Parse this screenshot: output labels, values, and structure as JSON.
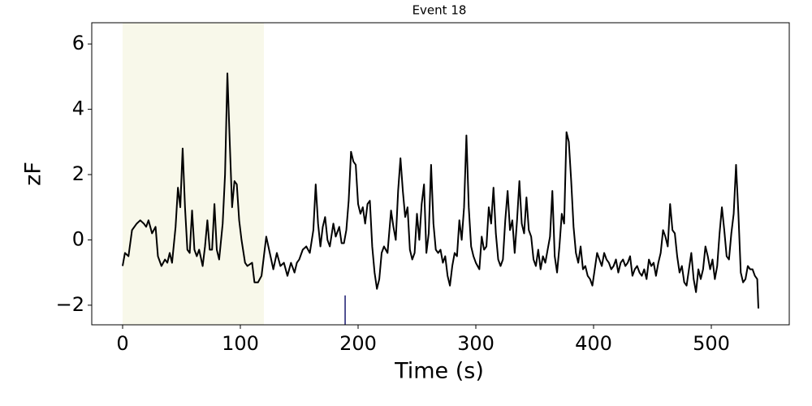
{
  "chart_data": {
    "type": "line",
    "title": "Event 18",
    "xlabel": "Time (s)",
    "ylabel": "zF",
    "xlim": [
      -26.2,
      566.2
    ],
    "ylim": [
      -2.6,
      6.65
    ],
    "xticks": [
      0,
      100,
      200,
      300,
      400,
      500
    ],
    "yticks": [
      {
        "value": -2,
        "label": "−2"
      },
      0,
      2,
      4,
      6
    ],
    "color": "#000000",
    "shade": {
      "xrange": [
        0,
        120
      ],
      "color": "#f8f8ea"
    },
    "event_line": {
      "x": 189,
      "ytop": -1.7,
      "color": "#191970"
    },
    "x": [
      0,
      2,
      5,
      8,
      12,
      15,
      18,
      20,
      22,
      25,
      28,
      30,
      33,
      36,
      38,
      40,
      42,
      45,
      47,
      49,
      51,
      53,
      55,
      57,
      59,
      61,
      63,
      65,
      68,
      70,
      72,
      74,
      76,
      78,
      80,
      82,
      85,
      87,
      89,
      91,
      93,
      95,
      97,
      99,
      101,
      104,
      106,
      110,
      112,
      115,
      118,
      120,
      122,
      125,
      128,
      131,
      134,
      137,
      140,
      143,
      146,
      148,
      150,
      153,
      156,
      159,
      162,
      164,
      166,
      168,
      170,
      172,
      174,
      176,
      179,
      181,
      184,
      186,
      188,
      190,
      192,
      194,
      196,
      198,
      200,
      202,
      204,
      206,
      208,
      210,
      212,
      214,
      216,
      218,
      220,
      222,
      225,
      228,
      230,
      232,
      234,
      236,
      238,
      240,
      242,
      244,
      246,
      248,
      250,
      252,
      254,
      256,
      258,
      260,
      262,
      264,
      266,
      268,
      270,
      272,
      274,
      276,
      278,
      280,
      282,
      284,
      286,
      288,
      290,
      292,
      294,
      296,
      298,
      300,
      303,
      305,
      307,
      309,
      311,
      313,
      315,
      317,
      319,
      321,
      323,
      325,
      327,
      329,
      331,
      333,
      335,
      337,
      339,
      341,
      343,
      345,
      347,
      349,
      351,
      353,
      355,
      357,
      359,
      361,
      363,
      365,
      367,
      369,
      371,
      373,
      375,
      377,
      379,
      381,
      383,
      385,
      387,
      389,
      391,
      393,
      395,
      397,
      399,
      401,
      403,
      405,
      407,
      409,
      411,
      413,
      415,
      417,
      419,
      421,
      423,
      425,
      427,
      429,
      431,
      433,
      435,
      437,
      439,
      441,
      443,
      445,
      447,
      449,
      451,
      453,
      455,
      457,
      459,
      461,
      463,
      465,
      467,
      469,
      471,
      473,
      475,
      477,
      479,
      481,
      483,
      485,
      487,
      489,
      491,
      493,
      495,
      497,
      499,
      501,
      503,
      505,
      507,
      509,
      511,
      513,
      515,
      517,
      519,
      521,
      523,
      525,
      527,
      529,
      531,
      533,
      535,
      537,
      539,
      540
    ],
    "values": [
      -0.8,
      -0.4,
      -0.5,
      0.3,
      0.5,
      0.6,
      0.5,
      0.4,
      0.6,
      0.2,
      0.4,
      -0.5,
      -0.8,
      -0.6,
      -0.7,
      -0.4,
      -0.7,
      0.4,
      1.6,
      1.0,
      2.8,
      1.0,
      -0.3,
      -0.4,
      0.9,
      -0.3,
      -0.5,
      -0.3,
      -0.8,
      -0.2,
      0.6,
      -0.3,
      -0.3,
      1.1,
      -0.3,
      -0.6,
      0.5,
      2.0,
      5.1,
      3.0,
      1.0,
      1.8,
      1.7,
      0.6,
      0.0,
      -0.7,
      -0.8,
      -0.7,
      -1.3,
      -1.3,
      -1.1,
      -0.5,
      0.1,
      -0.4,
      -0.9,
      -0.4,
      -0.8,
      -0.7,
      -1.1,
      -0.7,
      -1.0,
      -0.7,
      -0.6,
      -0.3,
      -0.2,
      -0.4,
      0.3,
      1.7,
      0.5,
      -0.2,
      0.4,
      0.7,
      0.0,
      -0.2,
      0.5,
      0.1,
      0.4,
      -0.1,
      -0.1,
      0.3,
      1.2,
      2.7,
      2.4,
      2.3,
      1.1,
      0.8,
      1.0,
      0.5,
      1.1,
      1.2,
      -0.2,
      -1.0,
      -1.5,
      -1.2,
      -0.4,
      -0.2,
      -0.4,
      0.9,
      0.4,
      0.0,
      1.5,
      2.5,
      1.5,
      0.7,
      1.0,
      -0.3,
      -0.6,
      -0.4,
      0.8,
      0.0,
      1.1,
      1.7,
      -0.4,
      0.2,
      2.3,
      0.5,
      -0.3,
      -0.4,
      -0.3,
      -0.7,
      -0.5,
      -1.1,
      -1.4,
      -0.8,
      -0.4,
      -0.5,
      0.6,
      0.0,
      1.0,
      3.2,
      1.0,
      -0.2,
      -0.5,
      -0.7,
      -0.9,
      0.1,
      -0.3,
      -0.2,
      1.0,
      0.5,
      1.6,
      0.2,
      -0.6,
      -0.8,
      -0.6,
      0.6,
      1.5,
      0.3,
      0.6,
      -0.4,
      0.6,
      1.8,
      0.5,
      0.2,
      1.3,
      0.3,
      0.1,
      -0.6,
      -0.8,
      -0.3,
      -0.9,
      -0.5,
      -0.7,
      -0.3,
      0.1,
      1.5,
      -0.5,
      -1.0,
      -0.2,
      0.8,
      0.5,
      3.3,
      3.0,
      1.8,
      0.4,
      -0.4,
      -0.7,
      -0.2,
      -0.9,
      -0.8,
      -1.1,
      -1.2,
      -1.4,
      -0.9,
      -0.4,
      -0.6,
      -0.8,
      -0.4,
      -0.6,
      -0.7,
      -0.9,
      -0.8,
      -0.6,
      -1.0,
      -0.7,
      -0.6,
      -0.8,
      -0.7,
      -0.5,
      -1.1,
      -0.9,
      -0.8,
      -1.0,
      -1.1,
      -0.9,
      -1.2,
      -0.6,
      -0.8,
      -0.7,
      -1.1,
      -0.7,
      -0.4,
      0.3,
      0.1,
      -0.2,
      1.1,
      0.3,
      0.2,
      -0.5,
      -1.0,
      -0.8,
      -1.3,
      -1.4,
      -0.9,
      -0.4,
      -1.2,
      -1.6,
      -0.9,
      -1.2,
      -0.9,
      -0.2,
      -0.5,
      -0.9,
      -0.6,
      -1.2,
      -0.8,
      0.2,
      1.0,
      0.3,
      -0.5,
      -0.6,
      0.2,
      0.8,
      2.3,
      0.8,
      -1.0,
      -1.3,
      -1.2,
      -0.8,
      -0.9,
      -0.9,
      -1.1,
      -1.2,
      -2.1
    ]
  }
}
